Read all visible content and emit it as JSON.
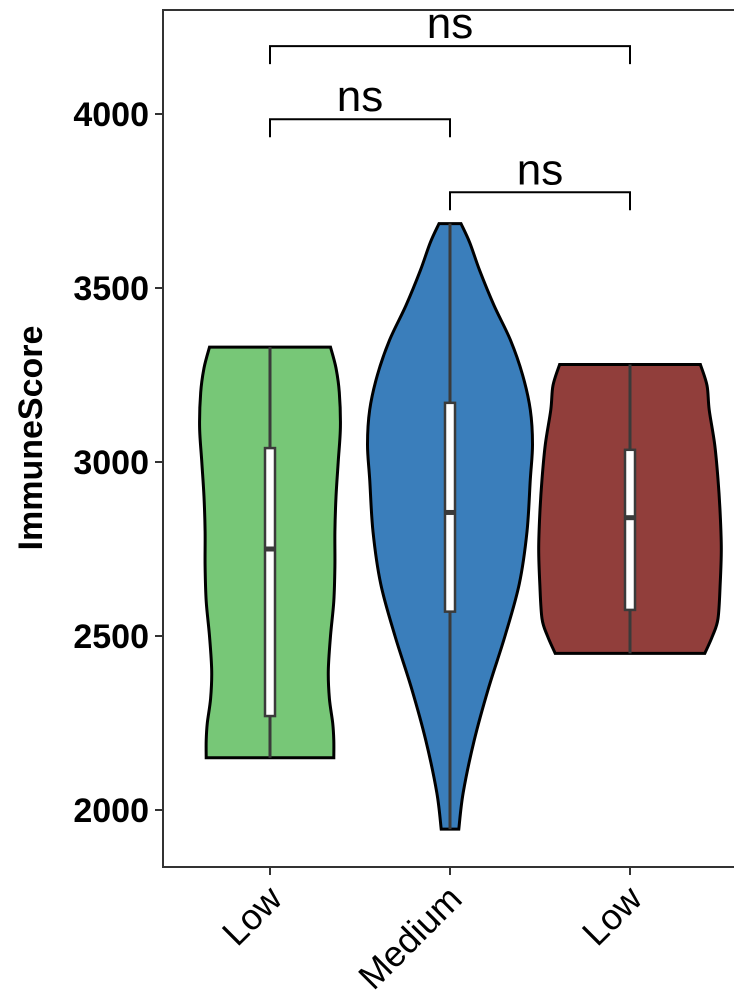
{
  "chart_data": {
    "type": "violin",
    "ylabel": "ImmuneScore",
    "xlabel": "",
    "ylim": [
      1840,
      4300
    ],
    "yticks": [
      2000,
      2500,
      3000,
      3500,
      4000
    ],
    "ytick_labels": [
      "2000",
      "2500",
      "3000",
      "3500",
      "4000"
    ],
    "categories": [
      "Low",
      "Medium",
      "Low"
    ],
    "groups": [
      {
        "label": "Low",
        "color": "#77c777",
        "min": 2150,
        "q1": 2270,
        "median": 2750,
        "q3": 3040,
        "max": 3330,
        "density_profile": [
          [
            2150,
            0.58
          ],
          [
            2200,
            0.58
          ],
          [
            2250,
            0.57
          ],
          [
            2320,
            0.54
          ],
          [
            2400,
            0.53
          ],
          [
            2500,
            0.55
          ],
          [
            2600,
            0.58
          ],
          [
            2700,
            0.59
          ],
          [
            2800,
            0.59
          ],
          [
            2900,
            0.6
          ],
          [
            3000,
            0.62
          ],
          [
            3100,
            0.64
          ],
          [
            3200,
            0.63
          ],
          [
            3270,
            0.6
          ],
          [
            3330,
            0.55
          ]
        ]
      },
      {
        "label": "Medium",
        "color": "#3a7ebb",
        "min": 1945,
        "q1": 2570,
        "median": 2855,
        "q3": 3170,
        "max": 3685,
        "density_profile": [
          [
            1945,
            0.08
          ],
          [
            2050,
            0.12
          ],
          [
            2200,
            0.22
          ],
          [
            2350,
            0.35
          ],
          [
            2500,
            0.5
          ],
          [
            2650,
            0.63
          ],
          [
            2800,
            0.7
          ],
          [
            2950,
            0.73
          ],
          [
            3050,
            0.75
          ],
          [
            3150,
            0.73
          ],
          [
            3250,
            0.66
          ],
          [
            3350,
            0.55
          ],
          [
            3450,
            0.4
          ],
          [
            3550,
            0.27
          ],
          [
            3630,
            0.18
          ],
          [
            3685,
            0.1
          ]
        ]
      },
      {
        "label": "Low",
        "color": "#913e3b",
        "min": 2450,
        "q1": 2575,
        "median": 2840,
        "q3": 3035,
        "max": 3280,
        "density_profile": [
          [
            2450,
            0.68
          ],
          [
            2500,
            0.75
          ],
          [
            2550,
            0.8
          ],
          [
            2650,
            0.82
          ],
          [
            2750,
            0.83
          ],
          [
            2850,
            0.82
          ],
          [
            2950,
            0.8
          ],
          [
            3050,
            0.77
          ],
          [
            3150,
            0.72
          ],
          [
            3220,
            0.7
          ],
          [
            3280,
            0.64
          ]
        ]
      }
    ],
    "comparisons": [
      {
        "groups": [
          0,
          1
        ],
        "label": "ns",
        "y": 3985
      },
      {
        "groups": [
          1,
          2
        ],
        "label": "ns",
        "y": 3775
      },
      {
        "groups": [
          0,
          2
        ],
        "label": "ns",
        "y": 4195
      }
    ],
    "grid": false,
    "legend": "none"
  }
}
